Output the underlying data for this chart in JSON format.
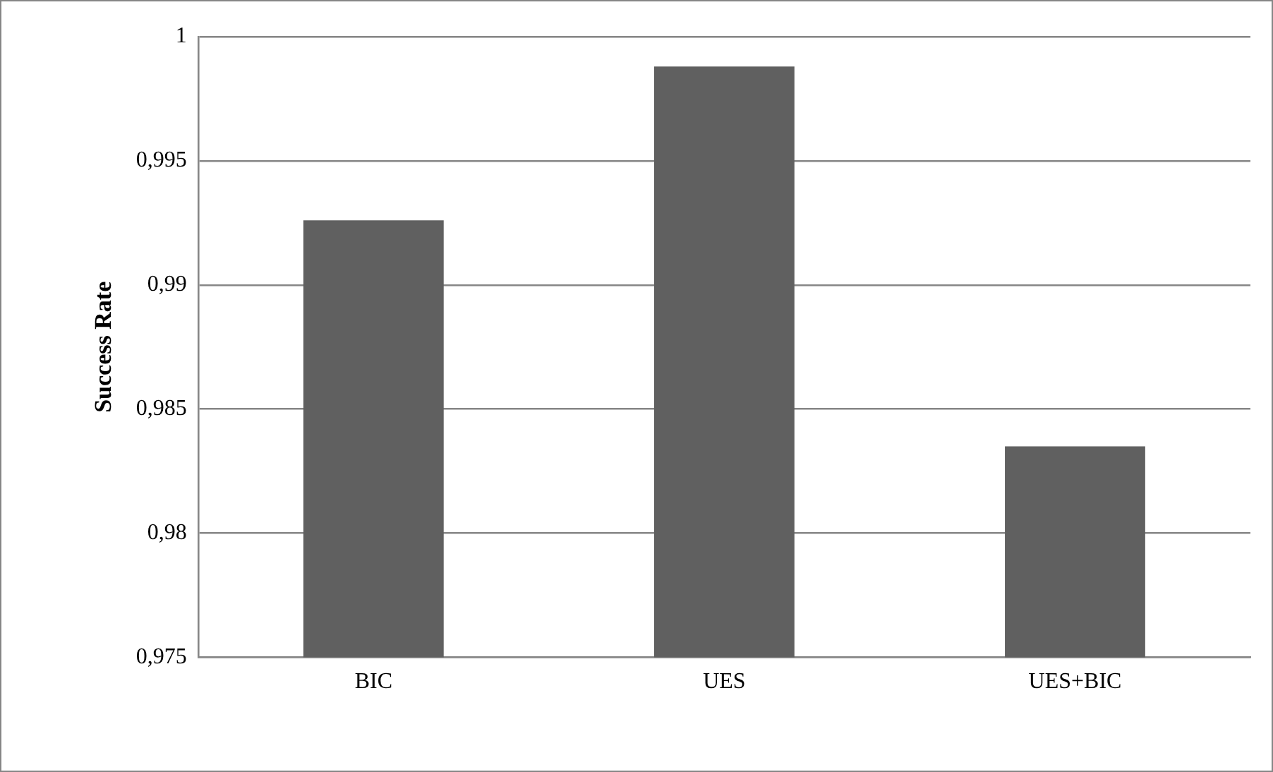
{
  "chart_data": {
    "type": "bar",
    "ylabel": "Success Rate",
    "categories": [
      "BIC",
      "UES",
      "UES+BIC"
    ],
    "values": [
      0.9926,
      0.9988,
      0.9835
    ],
    "color": "#606060",
    "ylim": [
      0.975,
      1
    ],
    "yticks": [
      {
        "value": 0.975,
        "label": "0,975"
      },
      {
        "value": 0.98,
        "label": "0,98"
      },
      {
        "value": 0.985,
        "label": "0,985"
      },
      {
        "value": 0.99,
        "label": "0,99"
      },
      {
        "value": 0.995,
        "label": "0,995"
      },
      {
        "value": 1,
        "label": "1"
      }
    ],
    "grid": "y",
    "legend": false
  }
}
